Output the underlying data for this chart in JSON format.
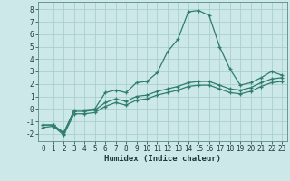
{
  "xlabel": "Humidex (Indice chaleur)",
  "background_color": "#cce8e8",
  "grid_color": "#aacece",
  "line_color": "#2e7d6e",
  "xlim": [
    -0.5,
    23.5
  ],
  "ylim": [
    -2.6,
    8.6
  ],
  "yticks": [
    -2,
    -1,
    0,
    1,
    2,
    3,
    4,
    5,
    6,
    7,
    8
  ],
  "xticks": [
    0,
    1,
    2,
    3,
    4,
    5,
    6,
    7,
    8,
    9,
    10,
    11,
    12,
    13,
    14,
    15,
    16,
    17,
    18,
    19,
    20,
    21,
    22,
    23
  ],
  "line1_x": [
    0,
    1,
    2,
    3,
    4,
    5,
    6,
    7,
    8,
    9,
    10,
    11,
    12,
    13,
    14,
    15,
    16,
    17,
    18,
    19,
    20,
    21,
    22,
    23
  ],
  "line1_y": [
    -1.3,
    -1.3,
    -2.0,
    -0.1,
    -0.1,
    0.0,
    1.3,
    1.5,
    1.3,
    2.1,
    2.2,
    2.9,
    4.6,
    5.6,
    7.8,
    7.9,
    7.5,
    5.0,
    3.2,
    1.9,
    2.1,
    2.5,
    3.0,
    2.7
  ],
  "line2_x": [
    0,
    1,
    2,
    3,
    4,
    5,
    6,
    7,
    8,
    9,
    10,
    11,
    12,
    13,
    14,
    15,
    16,
    17,
    18,
    19,
    20,
    21,
    22,
    23
  ],
  "line2_y": [
    -1.3,
    -1.3,
    -1.9,
    -0.2,
    -0.2,
    -0.1,
    0.5,
    0.8,
    0.6,
    1.0,
    1.1,
    1.4,
    1.6,
    1.8,
    2.1,
    2.2,
    2.2,
    1.9,
    1.6,
    1.5,
    1.7,
    2.1,
    2.4,
    2.5
  ],
  "line3_x": [
    0,
    1,
    2,
    3,
    4,
    5,
    6,
    7,
    8,
    9,
    10,
    11,
    12,
    13,
    14,
    15,
    16,
    17,
    18,
    19,
    20,
    21,
    22,
    23
  ],
  "line3_y": [
    -1.5,
    -1.4,
    -2.1,
    -0.4,
    -0.4,
    -0.3,
    0.2,
    0.5,
    0.3,
    0.7,
    0.8,
    1.1,
    1.3,
    1.5,
    1.8,
    1.9,
    1.9,
    1.6,
    1.3,
    1.2,
    1.4,
    1.8,
    2.1,
    2.2
  ]
}
